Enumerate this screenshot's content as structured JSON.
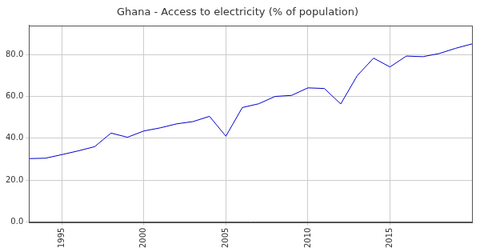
{
  "chart_data": {
    "type": "line",
    "title": "Ghana - Access to electricity (% of population)",
    "x": [
      1993,
      1994,
      1995,
      1996,
      1997,
      1998,
      1999,
      2000,
      2001,
      2002,
      2003,
      2004,
      2005,
      2006,
      2007,
      2008,
      2009,
      2010,
      2011,
      2012,
      2013,
      2014,
      2015,
      2016,
      2017,
      2018,
      2019,
      2020
    ],
    "series": [
      {
        "name": "Access to electricity (% of population)",
        "color": "#0000cc",
        "values": [
          30.3,
          30.5,
          32.2,
          34.0,
          36.0,
          42.5,
          40.5,
          43.5,
          45.0,
          46.9,
          48.0,
          50.5,
          41.0,
          54.7,
          56.5,
          60.0,
          60.5,
          64.1,
          63.8,
          56.4,
          69.9,
          78.3,
          74.1,
          79.3,
          79.0,
          80.5,
          83.0,
          85.1
        ]
      }
    ],
    "xlim": [
      1993,
      2020
    ],
    "xticks": [
      1995,
      2000,
      2005,
      2010,
      2015
    ],
    "ylim": [
      0,
      94
    ],
    "yticks": [
      {
        "value": 0,
        "label": "0.0"
      },
      {
        "value": 20,
        "label": "20.0"
      },
      {
        "value": 40,
        "label": "40.0"
      },
      {
        "value": 60,
        "label": "60.0"
      },
      {
        "value": 80,
        "label": "80.0"
      }
    ],
    "grid": true
  }
}
